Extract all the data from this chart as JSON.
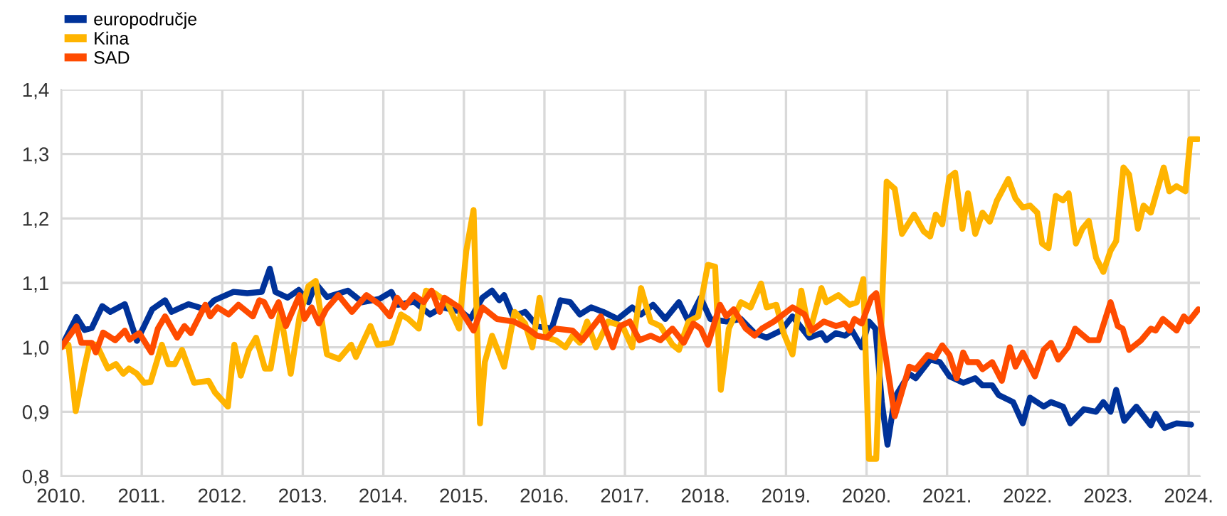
{
  "chart_data": {
    "type": "line",
    "xlim": [
      2010,
      2024.14
    ],
    "ylim": [
      0.8,
      1.4
    ],
    "xticks": [
      {
        "value": 2010,
        "label": "2010."
      },
      {
        "value": 2011,
        "label": "2011."
      },
      {
        "value": 2012,
        "label": "2012."
      },
      {
        "value": 2013,
        "label": "2013."
      },
      {
        "value": 2014,
        "label": "2014."
      },
      {
        "value": 2015,
        "label": "2015."
      },
      {
        "value": 2016,
        "label": "2016."
      },
      {
        "value": 2017,
        "label": "2017."
      },
      {
        "value": 2018,
        "label": "2018."
      },
      {
        "value": 2019,
        "label": "2019."
      },
      {
        "value": 2020,
        "label": "2020."
      },
      {
        "value": 2021,
        "label": "2021."
      },
      {
        "value": 2022,
        "label": "2022."
      },
      {
        "value": 2023,
        "label": "2023."
      },
      {
        "value": 2024,
        "label": "2024."
      }
    ],
    "yticks": [
      {
        "value": 0.8,
        "label": "0,8"
      },
      {
        "value": 0.9,
        "label": "0,9"
      },
      {
        "value": 1.0,
        "label": "1,0"
      },
      {
        "value": 1.1,
        "label": "1,1"
      },
      {
        "value": 1.2,
        "label": "1,2"
      },
      {
        "value": 1.3,
        "label": "1,3"
      },
      {
        "value": 1.4,
        "label": "1,4"
      }
    ],
    "grid": true,
    "legend": "top left",
    "marker": "none",
    "line_style": "solid",
    "series": [
      {
        "name": "europodručje",
        "color": "#003299",
        "x": [
          2010.0,
          2010.19,
          2010.29,
          2010.38,
          2010.51,
          2010.61,
          2010.79,
          2010.94,
          2011.03,
          2011.13,
          2011.29,
          2011.37,
          2011.58,
          2011.79,
          2011.9,
          2012.14,
          2012.31,
          2012.49,
          2012.59,
          2012.66,
          2012.81,
          2012.95,
          2013.07,
          2013.16,
          2013.3,
          2013.56,
          2013.74,
          2013.95,
          2014.1,
          2014.18,
          2014.38,
          2014.58,
          2014.73,
          2014.97,
          2015.08,
          2015.23,
          2015.35,
          2015.44,
          2015.5,
          2015.61,
          2015.76,
          2015.91,
          2016.09,
          2016.2,
          2016.32,
          2016.44,
          2016.58,
          2016.73,
          2016.91,
          2017.09,
          2017.2,
          2017.35,
          2017.5,
          2017.67,
          2017.79,
          2017.94,
          2018.06,
          2018.26,
          2018.44,
          2018.61,
          2018.76,
          2018.94,
          2019.08,
          2019.29,
          2019.44,
          2019.5,
          2019.62,
          2019.73,
          2019.82,
          2019.94,
          2020.03,
          2020.11,
          2020.19,
          2020.26,
          2020.35,
          2020.53,
          2020.61,
          2020.79,
          2020.91,
          2021.03,
          2021.2,
          2021.35,
          2021.44,
          2021.56,
          2021.64,
          2021.82,
          2021.94,
          2022.03,
          2022.2,
          2022.29,
          2022.44,
          2022.53,
          2022.7,
          2022.85,
          2022.94,
          2023.03,
          2023.1,
          2023.2,
          2023.35,
          2023.53,
          2023.59,
          2023.7,
          2023.85,
          2024.03
        ],
        "values": [
          1.0,
          1.047,
          1.027,
          1.03,
          1.064,
          1.055,
          1.067,
          1.01,
          1.033,
          1.059,
          1.073,
          1.055,
          1.067,
          1.059,
          1.073,
          1.086,
          1.084,
          1.086,
          1.122,
          1.086,
          1.077,
          1.089,
          1.07,
          1.099,
          1.078,
          1.088,
          1.07,
          1.075,
          1.086,
          1.066,
          1.071,
          1.051,
          1.062,
          1.055,
          1.044,
          1.077,
          1.088,
          1.073,
          1.081,
          1.048,
          1.055,
          1.033,
          1.029,
          1.073,
          1.07,
          1.051,
          1.062,
          1.055,
          1.044,
          1.062,
          1.051,
          1.066,
          1.044,
          1.07,
          1.04,
          1.077,
          1.044,
          1.04,
          1.044,
          1.022,
          1.015,
          1.026,
          1.048,
          1.015,
          1.022,
          1.011,
          1.022,
          1.018,
          1.026,
          1.0,
          1.04,
          1.029,
          0.915,
          0.849,
          0.922,
          0.959,
          0.952,
          0.981,
          0.977,
          0.955,
          0.945,
          0.952,
          0.941,
          0.941,
          0.926,
          0.915,
          0.882,
          0.922,
          0.908,
          0.915,
          0.908,
          0.882,
          0.904,
          0.9,
          0.915,
          0.9,
          0.934,
          0.886,
          0.908,
          0.879,
          0.897,
          0.875,
          0.882,
          0.88
        ]
      },
      {
        "name": "Kina",
        "color": "#ffb400",
        "x": [
          2010.0,
          2010.09,
          2010.18,
          2010.29,
          2010.35,
          2010.44,
          2010.58,
          2010.68,
          2010.77,
          2010.84,
          2010.94,
          2011.03,
          2011.11,
          2011.25,
          2011.33,
          2011.41,
          2011.5,
          2011.65,
          2011.83,
          2011.91,
          2012.07,
          2012.15,
          2012.23,
          2012.33,
          2012.42,
          2012.53,
          2012.6,
          2012.72,
          2012.85,
          2012.96,
          2013.07,
          2013.16,
          2013.3,
          2013.45,
          2013.6,
          2013.66,
          2013.84,
          2013.93,
          2014.1,
          2014.22,
          2014.31,
          2014.44,
          2014.53,
          2014.64,
          2014.79,
          2014.94,
          2015.03,
          2015.12,
          2015.2,
          2015.26,
          2015.35,
          2015.5,
          2015.63,
          2015.76,
          2015.85,
          2015.94,
          2016.03,
          2016.14,
          2016.26,
          2016.35,
          2016.44,
          2016.53,
          2016.64,
          2016.79,
          2016.97,
          2017.09,
          2017.2,
          2017.32,
          2017.44,
          2017.59,
          2017.67,
          2017.79,
          2017.91,
          2018.03,
          2018.12,
          2018.19,
          2018.29,
          2018.44,
          2018.56,
          2018.69,
          2018.76,
          2018.88,
          2018.97,
          2019.08,
          2019.19,
          2019.29,
          2019.44,
          2019.5,
          2019.65,
          2019.79,
          2019.88,
          2019.96,
          2020.03,
          2020.12,
          2020.25,
          2020.35,
          2020.44,
          2020.59,
          2020.71,
          2020.79,
          2020.86,
          2020.94,
          2021.03,
          2021.1,
          2021.19,
          2021.26,
          2021.35,
          2021.44,
          2021.53,
          2021.62,
          2021.76,
          2021.85,
          2021.94,
          2022.03,
          2022.12,
          2022.18,
          2022.26,
          2022.35,
          2022.44,
          2022.51,
          2022.6,
          2022.68,
          2022.76,
          2022.85,
          2022.94,
          2023.03,
          2023.1,
          2023.19,
          2023.26,
          2023.37,
          2023.44,
          2023.53,
          2023.69,
          2023.76,
          2023.85,
          2023.96,
          2024.02,
          2024.12
        ],
        "values": [
          1.0,
          1.004,
          0.901,
          0.97,
          1.004,
          1.004,
          0.967,
          0.974,
          0.959,
          0.967,
          0.959,
          0.945,
          0.946,
          1.004,
          0.974,
          0.974,
          0.996,
          0.945,
          0.948,
          0.93,
          0.908,
          1.004,
          0.956,
          0.996,
          1.015,
          0.967,
          0.967,
          1.055,
          0.959,
          1.048,
          1.095,
          1.103,
          0.989,
          0.982,
          1.004,
          0.985,
          1.033,
          1.004,
          1.007,
          1.051,
          1.044,
          1.029,
          1.088,
          1.084,
          1.07,
          1.029,
          1.15,
          1.213,
          0.882,
          0.977,
          1.018,
          0.97,
          1.055,
          1.037,
          1.0,
          1.077,
          1.015,
          1.011,
          1.0,
          1.018,
          1.007,
          1.04,
          1.0,
          1.04,
          1.033,
          1.0,
          1.092,
          1.04,
          1.033,
          1.004,
          0.996,
          1.04,
          1.048,
          1.128,
          1.125,
          0.934,
          1.029,
          1.07,
          1.062,
          1.099,
          1.062,
          1.066,
          1.022,
          0.989,
          1.088,
          1.022,
          1.092,
          1.07,
          1.081,
          1.066,
          1.07,
          1.106,
          0.827,
          0.827,
          1.257,
          1.246,
          1.176,
          1.206,
          1.18,
          1.172,
          1.206,
          1.191,
          1.264,
          1.271,
          1.184,
          1.239,
          1.176,
          1.209,
          1.195,
          1.228,
          1.261,
          1.231,
          1.217,
          1.22,
          1.209,
          1.161,
          1.154,
          1.235,
          1.228,
          1.239,
          1.161,
          1.184,
          1.196,
          1.139,
          1.117,
          1.15,
          1.165,
          1.279,
          1.268,
          1.184,
          1.22,
          1.209,
          1.279,
          1.242,
          1.25,
          1.242,
          1.323,
          1.323
        ]
      },
      {
        "name": "SAD",
        "color": "#ff4b00",
        "x": [
          2010.0,
          2010.19,
          2010.25,
          2010.38,
          2010.43,
          2010.52,
          2010.67,
          2010.79,
          2010.85,
          2010.97,
          2011.12,
          2011.2,
          2011.29,
          2011.44,
          2011.53,
          2011.61,
          2011.79,
          2011.85,
          2011.94,
          2012.08,
          2012.2,
          2012.38,
          2012.46,
          2012.52,
          2012.61,
          2012.7,
          2012.79,
          2012.96,
          2013.02,
          2013.11,
          2013.2,
          2013.29,
          2013.44,
          2013.61,
          2013.79,
          2013.96,
          2014.08,
          2014.17,
          2014.26,
          2014.38,
          2014.5,
          2014.6,
          2014.7,
          2014.76,
          2014.94,
          2015.12,
          2015.23,
          2015.41,
          2015.62,
          2015.79,
          2015.91,
          2016.03,
          2016.14,
          2016.35,
          2016.47,
          2016.7,
          2016.85,
          2016.94,
          2017.06,
          2017.18,
          2017.32,
          2017.44,
          2017.59,
          2017.73,
          2017.85,
          2017.94,
          2018.03,
          2018.18,
          2018.26,
          2018.35,
          2018.5,
          2018.61,
          2018.7,
          2018.85,
          2019.08,
          2019.23,
          2019.32,
          2019.47,
          2019.62,
          2019.73,
          2019.79,
          2019.85,
          2019.94,
          2020.06,
          2020.12,
          2020.2,
          2020.35,
          2020.53,
          2020.61,
          2020.76,
          2020.85,
          2020.94,
          2021.03,
          2021.12,
          2021.2,
          2021.26,
          2021.38,
          2021.44,
          2021.56,
          2021.68,
          2021.78,
          2021.85,
          2021.94,
          2022.09,
          2022.2,
          2022.29,
          2022.38,
          2022.5,
          2022.59,
          2022.76,
          2022.88,
          2023.03,
          2023.12,
          2023.18,
          2023.26,
          2023.41,
          2023.53,
          2023.59,
          2023.68,
          2023.85,
          2023.94,
          2024.0,
          2024.12
        ],
        "values": [
          1.0,
          1.033,
          1.007,
          1.007,
          0.992,
          1.023,
          1.011,
          1.026,
          1.012,
          1.022,
          0.992,
          1.029,
          1.048,
          1.015,
          1.033,
          1.022,
          1.066,
          1.048,
          1.062,
          1.051,
          1.066,
          1.048,
          1.073,
          1.07,
          1.048,
          1.07,
          1.033,
          1.081,
          1.044,
          1.062,
          1.037,
          1.059,
          1.081,
          1.055,
          1.081,
          1.066,
          1.048,
          1.077,
          1.062,
          1.081,
          1.07,
          1.088,
          1.055,
          1.077,
          1.062,
          1.026,
          1.062,
          1.044,
          1.04,
          1.029,
          1.018,
          1.015,
          1.029,
          1.026,
          1.011,
          1.048,
          1.0,
          1.033,
          1.04,
          1.011,
          1.018,
          1.011,
          1.029,
          1.007,
          1.037,
          1.029,
          1.004,
          1.066,
          1.048,
          1.059,
          1.029,
          1.018,
          1.029,
          1.04,
          1.062,
          1.051,
          1.026,
          1.04,
          1.033,
          1.037,
          1.026,
          1.044,
          1.037,
          1.077,
          1.084,
          1.018,
          0.893,
          0.97,
          0.966,
          0.988,
          0.984,
          1.003,
          0.988,
          0.952,
          0.992,
          0.977,
          0.977,
          0.966,
          0.977,
          0.948,
          1.0,
          0.97,
          0.992,
          0.955,
          0.996,
          1.007,
          0.981,
          1.0,
          1.029,
          1.011,
          1.011,
          1.07,
          1.033,
          1.029,
          0.996,
          1.011,
          1.029,
          1.026,
          1.044,
          1.026,
          1.048,
          1.04,
          1.059
        ]
      }
    ]
  }
}
